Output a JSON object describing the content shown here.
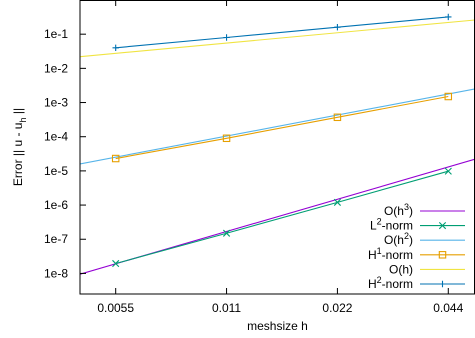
{
  "chart_data": {
    "type": "line",
    "xlabel": "meshsize h",
    "ylabel": "Error  || u - u_h ||",
    "x_scale": "log",
    "y_scale": "log",
    "xlim": [
      0.0044,
      0.052
    ],
    "ylim": [
      2.5e-09,
      1.0
    ],
    "grid": false,
    "legend_position": "bottom-right",
    "x_ticks": [
      {
        "value": 0.0055,
        "label": "0.0055"
      },
      {
        "value": 0.011,
        "label": "0.011"
      },
      {
        "value": 0.022,
        "label": "0.022"
      },
      {
        "value": 0.044,
        "label": "0.044"
      }
    ],
    "y_ticks": [
      {
        "value": 1e-08,
        "label": "1e-8"
      },
      {
        "value": 1e-07,
        "label": "1e-7"
      },
      {
        "value": 1e-06,
        "label": "1e-6"
      },
      {
        "value": 1e-05,
        "label": "1e-5"
      },
      {
        "value": 0.0001,
        "label": "1e-4"
      },
      {
        "value": 0.001,
        "label": "1e-3"
      },
      {
        "value": 0.01,
        "label": "1e-2"
      },
      {
        "value": 0.1,
        "label": "1e-1"
      }
    ],
    "series": [
      {
        "name": "O(h³)",
        "label_main": "O(h",
        "label_sup": "3",
        "label_tail": ")",
        "color": "#9400d3",
        "marker": "none",
        "x": [
          0.0044,
          0.052
        ],
        "y": [
          9.5e-09,
          2.2e-05
        ]
      },
      {
        "name": "L²-norm",
        "label_main": "L",
        "label_sup": "2",
        "label_tail": "-norm",
        "color": "#009e73",
        "marker": "x",
        "x": [
          0.0055,
          0.011,
          0.022,
          0.044
        ],
        "y": [
          1.95e-08,
          1.5e-07,
          1.2e-06,
          9.8e-06
        ]
      },
      {
        "name": "O(h²)",
        "label_main": "O(h",
        "label_sup": "2",
        "label_tail": ")",
        "color": "#56b4e9",
        "marker": "none",
        "x": [
          0.0044,
          0.052
        ],
        "y": [
          1.6e-05,
          0.0025
        ]
      },
      {
        "name": "H¹-norm",
        "label_main": "H",
        "label_sup": "1",
        "label_tail": "-norm",
        "color": "#e69f00",
        "marker": "square",
        "x": [
          0.0055,
          0.011,
          0.022,
          0.044
        ],
        "y": [
          2.3e-05,
          9e-05,
          0.00037,
          0.0015
        ]
      },
      {
        "name": "O(h)",
        "label_main": "O(h)",
        "label_sup": "",
        "label_tail": "",
        "color": "#f0e442",
        "marker": "none",
        "x": [
          0.0044,
          0.052
        ],
        "y": [
          0.022,
          0.26
        ]
      },
      {
        "name": "H²-norm",
        "label_main": "H",
        "label_sup": "2",
        "label_tail": "-norm",
        "color": "#0072b2",
        "marker": "plus",
        "x": [
          0.0055,
          0.011,
          0.022,
          0.044
        ],
        "y": [
          0.04,
          0.08,
          0.16,
          0.32
        ]
      }
    ]
  }
}
